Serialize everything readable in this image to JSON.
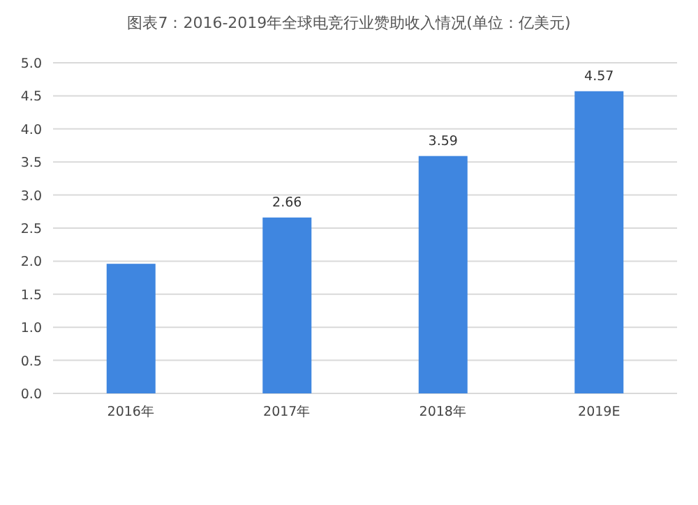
{
  "chart_data": {
    "type": "bar",
    "title": "图表7：2016-2019年全球电竞行业赞助收入情况(单位：亿美元)",
    "categories": [
      "2016年",
      "2017年",
      "2018年",
      "2019E"
    ],
    "values": [
      1.96,
      2.66,
      3.59,
      4.57
    ],
    "value_labels": [
      null,
      "2.66",
      "3.59",
      "4.57"
    ],
    "color": "#3f86e0",
    "ylim": [
      0,
      5
    ],
    "yticks": [
      {
        "value": 0,
        "label": "0.0"
      },
      {
        "value": 0.5,
        "label": "0.5"
      },
      {
        "value": 1,
        "label": "1.0"
      },
      {
        "value": 1.5,
        "label": "1.5"
      },
      {
        "value": 2,
        "label": "2.0"
      },
      {
        "value": 2.5,
        "label": "2.5"
      },
      {
        "value": 3,
        "label": "3.0"
      },
      {
        "value": 3.5,
        "label": "3.5"
      },
      {
        "value": 4,
        "label": "4.0"
      },
      {
        "value": 4.5,
        "label": "4.5"
      },
      {
        "value": 5,
        "label": "5.0"
      }
    ],
    "grid": "y"
  }
}
